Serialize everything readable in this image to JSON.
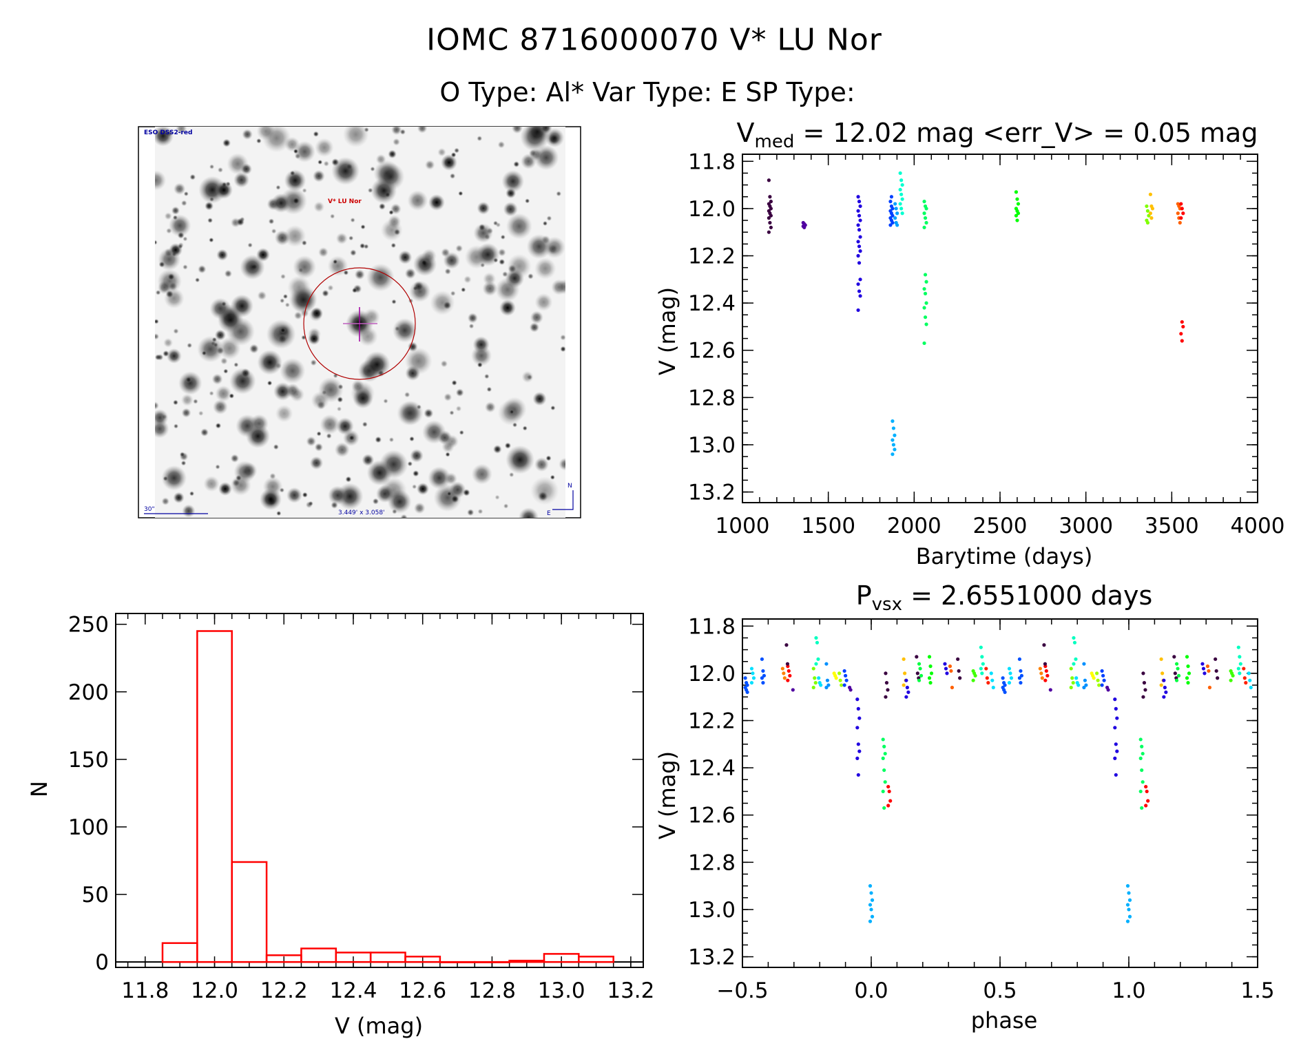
{
  "header": {
    "title": "IOMC 8716000070    V* LU Nor",
    "subtitle": "O Type: Al*   Var Type: E   SP Type:"
  },
  "image_panel": {
    "survey_label": "ESO DSS2-red",
    "target_label": "V* LU Nor",
    "scale_label": "30\"",
    "fov_label": "3.449' x 3.058'",
    "north_label": "N",
    "east_label": "E",
    "colors": {
      "survey": "#0000a0",
      "target": "#cc0000",
      "circle": "#b00000",
      "crosshair": "#a000a0"
    }
  },
  "chart_data": [
    {
      "id": "light-curve",
      "type": "scatter",
      "title_main": "V",
      "title_sub": "med",
      "title_rest": " = 12.02 mag <err_V> = 0.05 mag",
      "xlabel": "Barytime (days)",
      "ylabel": "V (mag)",
      "xlim": [
        1000,
        4000
      ],
      "ylim": [
        11.77,
        13.245
      ],
      "y_reversed": true,
      "x_ticks": [
        "1000",
        "1500",
        "2000",
        "2500",
        "3000",
        "3500",
        "4000"
      ],
      "y_ticks": [
        "11.8",
        "12.0",
        "12.2",
        "12.4",
        "12.6",
        "12.8",
        "13.0",
        "13.2"
      ],
      "groups": [
        {
          "color": "#3a0040",
          "x": 1160,
          "v": [
            11.88,
            11.95,
            11.97,
            11.98,
            11.99,
            12.0,
            12.01,
            12.02,
            12.03,
            12.04,
            12.06,
            12.08,
            12.1
          ]
        },
        {
          "color": "#5000a0",
          "x": 1360,
          "v": [
            12.06,
            12.065,
            12.07,
            12.075,
            12.08
          ]
        },
        {
          "color": "#2000e0",
          "x": 1680,
          "v": [
            11.95,
            11.97,
            11.99,
            12.01,
            12.03,
            12.05,
            12.07,
            12.09,
            12.12,
            12.14,
            12.16,
            12.18,
            12.2,
            12.23,
            12.3,
            12.32,
            12.35,
            12.37,
            12.43
          ]
        },
        {
          "color": "#0040ff",
          "x": 1868,
          "v": [
            11.97,
            11.99,
            12.0,
            12.01,
            12.02,
            12.03,
            12.04,
            12.05,
            12.06,
            12.07,
            11.95
          ]
        },
        {
          "color": "#00b0ff",
          "x": 1880,
          "v": [
            12.9,
            12.93,
            12.96,
            12.98,
            13.0,
            13.02,
            13.04
          ]
        },
        {
          "color": "#00a0ff",
          "x": 1895,
          "v": [
            11.98,
            12.0,
            12.02,
            12.04,
            12.06,
            12.07
          ]
        },
        {
          "color": "#00ffd0",
          "x": 1925,
          "v": [
            11.85,
            11.88,
            11.9,
            11.92,
            11.94,
            11.96,
            11.98,
            12.0,
            12.02
          ]
        },
        {
          "color": "#00ff60",
          "x": 2065,
          "v": [
            11.97,
            11.99,
            12.0,
            12.02,
            12.04,
            12.06,
            12.08,
            12.28,
            12.31,
            12.34,
            12.36,
            12.4,
            12.42,
            12.46,
            12.49,
            12.57
          ]
        },
        {
          "color": "#00ff00",
          "x": 2600,
          "v": [
            11.93,
            11.96,
            11.98,
            12.0,
            12.01,
            12.02,
            12.03,
            12.05
          ]
        },
        {
          "color": "#80ff00",
          "x": 3360,
          "v": [
            11.99,
            12.01,
            12.03,
            12.05,
            12.06
          ]
        },
        {
          "color": "#ffc000",
          "x": 3382,
          "v": [
            11.94,
            11.99,
            12.0,
            12.02,
            12.04
          ]
        },
        {
          "color": "#ff6000",
          "x": 3542,
          "v": [
            11.98,
            11.99,
            12.0,
            12.02,
            12.04,
            12.06
          ]
        },
        {
          "color": "#ff0000",
          "x": 3560,
          "v": [
            11.98,
            12.0,
            12.02,
            12.04,
            12.48,
            12.5,
            12.53,
            12.56
          ]
        }
      ]
    },
    {
      "id": "phase-curve",
      "type": "scatter",
      "title_main": "P",
      "title_sub": "vsx",
      "title_rest": " = 2.6551000 days",
      "xlabel": "phase",
      "ylabel": "V (mag)",
      "xlim": [
        -0.5,
        1.5
      ],
      "ylim": [
        11.77,
        13.245
      ],
      "y_reversed": true,
      "x_ticks": [
        "−0.5",
        "0.0",
        "0.5",
        "1.0",
        "1.5"
      ],
      "y_ticks": [
        "11.8",
        "12.0",
        "12.2",
        "12.4",
        "12.6",
        "12.8",
        "13.0",
        "13.2"
      ],
      "phase_repeat": 1,
      "groups": [
        {
          "color": "#0050ff",
          "x": -0.485,
          "v": [
            12.02,
            12.04,
            12.05,
            12.06,
            12.07,
            12.08
          ]
        },
        {
          "color": "#00e0ff",
          "x": -0.46,
          "v": [
            11.98,
            12.0,
            12.02,
            12.04
          ]
        },
        {
          "color": "#0050ff",
          "x": -0.42,
          "v": [
            11.94,
            11.99,
            12.01,
            12.02,
            12.04
          ]
        },
        {
          "color": "#ff8000",
          "x": -0.34,
          "v": [
            11.98,
            12.0,
            12.02
          ]
        },
        {
          "color": "#ff0000",
          "x": -0.32,
          "v": [
            11.97,
            11.99,
            12.01,
            12.03
          ]
        },
        {
          "color": "#3a0040",
          "x": -0.325,
          "v": [
            11.88,
            11.96
          ]
        },
        {
          "color": "#5000a0",
          "x": -0.3,
          "v": [
            12.07
          ]
        },
        {
          "color": "#80ff00",
          "x": -0.22,
          "v": [
            11.98,
            12.02,
            12.04,
            12.06
          ]
        },
        {
          "color": "#00ffc0",
          "x": -0.21,
          "v": [
            11.85,
            11.87,
            11.94,
            11.96
          ]
        },
        {
          "color": "#00e0ff",
          "x": -0.2,
          "v": [
            12.02,
            12.04,
            12.05
          ]
        },
        {
          "color": "#0090ff",
          "x": -0.17,
          "v": [
            11.96,
            12.03,
            12.05,
            12.06
          ]
        },
        {
          "color": "#ffff00",
          "x": -0.14,
          "v": [
            12.0,
            12.01,
            12.02
          ]
        },
        {
          "color": "#a0ff00",
          "x": -0.12,
          "v": [
            12.0,
            12.03,
            12.05
          ]
        },
        {
          "color": "#0040ff",
          "x": -0.1,
          "v": [
            11.99,
            12.01,
            12.03,
            12.05
          ]
        },
        {
          "color": "#5000a0",
          "x": -0.08,
          "v": [
            12.06,
            12.07
          ]
        },
        {
          "color": "#2000e0",
          "x": -0.05,
          "v": [
            12.11,
            12.15,
            12.19,
            12.23,
            12.3,
            12.33,
            12.36,
            12.43
          ]
        },
        {
          "color": "#00b0ff",
          "x": 0.0,
          "v": [
            12.9,
            12.93,
            12.96,
            12.98,
            13.0,
            13.03,
            13.05
          ]
        },
        {
          "color": "#00ff60",
          "x": 0.05,
          "v": [
            12.28,
            12.31,
            12.34,
            12.36,
            12.41,
            12.46,
            12.5,
            12.57
          ]
        },
        {
          "color": "#3a0040",
          "x": 0.06,
          "v": [
            12.0,
            12.04,
            12.07,
            12.1
          ]
        },
        {
          "color": "#ff0000",
          "x": 0.07,
          "v": [
            12.48,
            12.5,
            12.54,
            12.56
          ]
        },
        {
          "color": "#ffc000",
          "x": 0.13,
          "v": [
            11.94,
            12.0,
            12.03,
            12.05
          ]
        },
        {
          "color": "#2000e0",
          "x": 0.14,
          "v": [
            12.03,
            12.06,
            12.08,
            12.1
          ]
        },
        {
          "color": "#3a0040",
          "x": 0.18,
          "v": [
            11.93,
            12.0,
            12.02
          ]
        },
        {
          "color": "#00ff40",
          "x": 0.19,
          "v": [
            11.96,
            11.98,
            12.01,
            12.03
          ]
        },
        {
          "color": "#00ff00",
          "x": 0.23,
          "v": [
            11.93,
            11.97,
            12.0,
            12.02,
            12.04
          ]
        },
        {
          "color": "#2000e0",
          "x": 0.29,
          "v": [
            11.96,
            11.98,
            12.0
          ]
        },
        {
          "color": "#ff6000",
          "x": 0.31,
          "v": [
            11.97,
            11.99,
            12.06
          ]
        },
        {
          "color": "#3a0040",
          "x": 0.34,
          "v": [
            11.94,
            11.99,
            12.02
          ]
        },
        {
          "color": "#40ff00",
          "x": 0.4,
          "v": [
            11.99,
            12.0,
            12.01,
            12.03
          ]
        },
        {
          "color": "#00ffc0",
          "x": 0.43,
          "v": [
            11.89,
            11.93,
            11.96,
            11.98,
            12.0
          ]
        },
        {
          "color": "#ff2000",
          "x": 0.45,
          "v": [
            11.98,
            12.02,
            12.04
          ]
        },
        {
          "color": "#00e0ff",
          "x": 0.47,
          "v": [
            12.0,
            12.03,
            12.06
          ]
        }
      ]
    },
    {
      "id": "histogram",
      "type": "bar",
      "xlabel": "V (mag)",
      "ylabel": "N",
      "xlim": [
        11.715,
        13.236
      ],
      "ylim": [
        -4,
        258
      ],
      "x_ticks": [
        "11.8",
        "12.0",
        "12.2",
        "12.4",
        "12.6",
        "12.8",
        "13.0",
        "13.2"
      ],
      "y_ticks": [
        "0",
        "50",
        "100",
        "150",
        "200",
        "250"
      ],
      "bar_color": "#ff0000",
      "bin_width": 0.1,
      "bin_starts": [
        11.85,
        11.95,
        12.05,
        12.15,
        12.25,
        12.35,
        12.45,
        12.55,
        12.65,
        12.75,
        12.85,
        12.95,
        13.05
      ],
      "counts": [
        14,
        245,
        74,
        5,
        10,
        7,
        7,
        4,
        0,
        0,
        1,
        6,
        4
      ]
    }
  ]
}
